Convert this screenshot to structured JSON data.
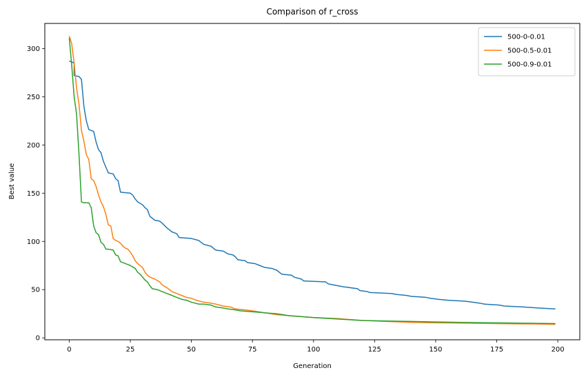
{
  "chart_data": {
    "type": "line",
    "title": "Comparison of r_cross",
    "xlabel": "Generation",
    "ylabel": "Best value",
    "xlim": [
      -10,
      209
    ],
    "ylim": [
      -2,
      326
    ],
    "xticks": [
      0,
      25,
      50,
      75,
      100,
      125,
      150,
      175,
      200
    ],
    "yticks": [
      0,
      50,
      100,
      150,
      200,
      250,
      300
    ],
    "grid": false,
    "legend": "upper-right",
    "series": [
      {
        "name": "500-0-0.01",
        "color": "#1f77b4",
        "points": [
          [
            0,
            287
          ],
          [
            2,
            285
          ],
          [
            2,
            272
          ],
          [
            4,
            271
          ],
          [
            5,
            268
          ],
          [
            6,
            240
          ],
          [
            7,
            225
          ],
          [
            8,
            216
          ],
          [
            10,
            214
          ],
          [
            11,
            203
          ],
          [
            12,
            195
          ],
          [
            13,
            192
          ],
          [
            14,
            183
          ],
          [
            15,
            177
          ],
          [
            16,
            171
          ],
          [
            18,
            170
          ],
          [
            19,
            165
          ],
          [
            20,
            163
          ],
          [
            21,
            151
          ],
          [
            25,
            150
          ],
          [
            26,
            148
          ],
          [
            27,
            144
          ],
          [
            28,
            141
          ],
          [
            30,
            138
          ],
          [
            31,
            135
          ],
          [
            32,
            133
          ],
          [
            33,
            126
          ],
          [
            35,
            122
          ],
          [
            37,
            121
          ],
          [
            38,
            119
          ],
          [
            40,
            114
          ],
          [
            42,
            110
          ],
          [
            44,
            108
          ],
          [
            45,
            104
          ],
          [
            50,
            103
          ],
          [
            53,
            101
          ],
          [
            54,
            99
          ],
          [
            55,
            97
          ],
          [
            58,
            95
          ],
          [
            60,
            91
          ],
          [
            63,
            90
          ],
          [
            65,
            87
          ],
          [
            67,
            86
          ],
          [
            68,
            84
          ],
          [
            69,
            81
          ],
          [
            72,
            80
          ],
          [
            73,
            78
          ],
          [
            76,
            77
          ],
          [
            78,
            75
          ],
          [
            80,
            73
          ],
          [
            83,
            72
          ],
          [
            85,
            70
          ],
          [
            87,
            66
          ],
          [
            91,
            65
          ],
          [
            92,
            63
          ],
          [
            95,
            61
          ],
          [
            96,
            59
          ],
          [
            105,
            58
          ],
          [
            106,
            56
          ],
          [
            112,
            53
          ],
          [
            115,
            52
          ],
          [
            118,
            51
          ],
          [
            119,
            49
          ],
          [
            122,
            48
          ],
          [
            123,
            47
          ],
          [
            132,
            46
          ],
          [
            134,
            45
          ],
          [
            138,
            44
          ],
          [
            140,
            43
          ],
          [
            146,
            42
          ],
          [
            148,
            41
          ],
          [
            151,
            40
          ],
          [
            155,
            39
          ],
          [
            162,
            38
          ],
          [
            165,
            37
          ],
          [
            168,
            36
          ],
          [
            170,
            35
          ],
          [
            176,
            34
          ],
          [
            178,
            33
          ],
          [
            186,
            32
          ],
          [
            192,
            31
          ],
          [
            199,
            30
          ]
        ]
      },
      {
        "name": "500-0.5-0.01",
        "color": "#ff7f0e",
        "points": [
          [
            0,
            313
          ],
          [
            1,
            305
          ],
          [
            2,
            285
          ],
          [
            3,
            259
          ],
          [
            4,
            242
          ],
          [
            5,
            215
          ],
          [
            6,
            204
          ],
          [
            7,
            190
          ],
          [
            8,
            185
          ],
          [
            9,
            165
          ],
          [
            10,
            163
          ],
          [
            11,
            157
          ],
          [
            12,
            148
          ],
          [
            13,
            141
          ],
          [
            14,
            136
          ],
          [
            15,
            128
          ],
          [
            16,
            117
          ],
          [
            17,
            116
          ],
          [
            18,
            103
          ],
          [
            19,
            101
          ],
          [
            20,
            100
          ],
          [
            21,
            98
          ],
          [
            22,
            95
          ],
          [
            23,
            93
          ],
          [
            24,
            92
          ],
          [
            25,
            89
          ],
          [
            26,
            85
          ],
          [
            27,
            80
          ],
          [
            28,
            77
          ],
          [
            30,
            73
          ],
          [
            31,
            68
          ],
          [
            32,
            65
          ],
          [
            33,
            63
          ],
          [
            35,
            61
          ],
          [
            37,
            58
          ],
          [
            38,
            55
          ],
          [
            40,
            52
          ],
          [
            41,
            50
          ],
          [
            42,
            48
          ],
          [
            44,
            46
          ],
          [
            46,
            44
          ],
          [
            48,
            42
          ],
          [
            50,
            41
          ],
          [
            52,
            39
          ],
          [
            55,
            37
          ],
          [
            58,
            36
          ],
          [
            60,
            35
          ],
          [
            63,
            33
          ],
          [
            66,
            32
          ],
          [
            68,
            30
          ],
          [
            72,
            29
          ],
          [
            75,
            28
          ],
          [
            80,
            26
          ],
          [
            85,
            24
          ],
          [
            90,
            23
          ],
          [
            100,
            21
          ],
          [
            110,
            20
          ],
          [
            120,
            18
          ],
          [
            130,
            17
          ],
          [
            140,
            16
          ],
          [
            150,
            15.6
          ],
          [
            160,
            15.3
          ],
          [
            170,
            15
          ],
          [
            180,
            14.6
          ],
          [
            190,
            14.4
          ],
          [
            199,
            14
          ]
        ]
      },
      {
        "name": "500-0.9-0.01",
        "color": "#2ca02c",
        "points": [
          [
            0,
            311
          ],
          [
            1,
            283
          ],
          [
            2,
            250
          ],
          [
            3,
            232
          ],
          [
            4,
            190
          ],
          [
            5,
            141
          ],
          [
            6,
            140
          ],
          [
            8,
            140
          ],
          [
            9,
            135
          ],
          [
            10,
            116
          ],
          [
            11,
            109
          ],
          [
            12,
            107
          ],
          [
            13,
            99
          ],
          [
            14,
            97
          ],
          [
            15,
            92
          ],
          [
            16,
            92
          ],
          [
            18,
            91
          ],
          [
            19,
            86
          ],
          [
            20,
            85
          ],
          [
            21,
            79
          ],
          [
            22,
            78
          ],
          [
            24,
            76
          ],
          [
            25,
            75
          ],
          [
            27,
            72
          ],
          [
            28,
            68
          ],
          [
            29,
            66
          ],
          [
            30,
            63
          ],
          [
            31,
            60
          ],
          [
            32,
            58
          ],
          [
            33,
            54
          ],
          [
            34,
            51
          ],
          [
            36,
            50
          ],
          [
            38,
            48
          ],
          [
            40,
            46
          ],
          [
            42,
            44
          ],
          [
            44,
            42
          ],
          [
            46,
            40
          ],
          [
            48,
            39
          ],
          [
            50,
            37
          ],
          [
            53,
            35
          ],
          [
            55,
            35
          ],
          [
            58,
            34
          ],
          [
            60,
            32
          ],
          [
            63,
            31
          ],
          [
            65,
            30
          ],
          [
            68,
            29
          ],
          [
            70,
            28
          ],
          [
            75,
            27
          ],
          [
            80,
            26
          ],
          [
            85,
            25
          ],
          [
            90,
            23
          ],
          [
            95,
            22
          ],
          [
            100,
            21
          ],
          [
            110,
            19.5
          ],
          [
            120,
            18
          ],
          [
            130,
            17.5
          ],
          [
            140,
            17
          ],
          [
            150,
            16.5
          ],
          [
            160,
            16
          ],
          [
            170,
            15.7
          ],
          [
            180,
            15.4
          ],
          [
            190,
            15.1
          ],
          [
            199,
            14.8
          ]
        ]
      }
    ]
  }
}
